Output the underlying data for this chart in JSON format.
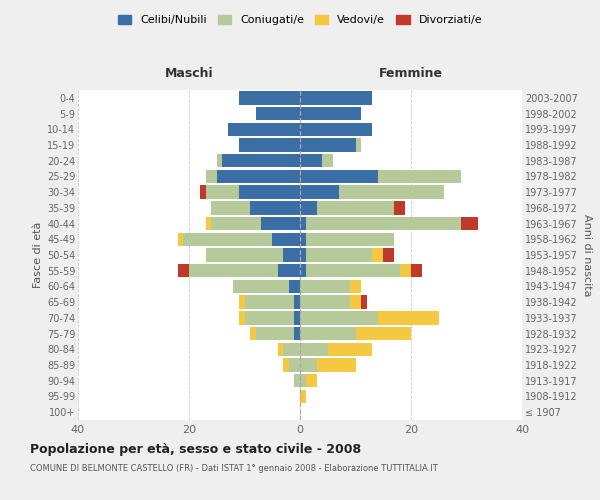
{
  "age_groups": [
    "100+",
    "95-99",
    "90-94",
    "85-89",
    "80-84",
    "75-79",
    "70-74",
    "65-69",
    "60-64",
    "55-59",
    "50-54",
    "45-49",
    "40-44",
    "35-39",
    "30-34",
    "25-29",
    "20-24",
    "15-19",
    "10-14",
    "5-9",
    "0-4"
  ],
  "birth_years": [
    "≤ 1907",
    "1908-1912",
    "1913-1917",
    "1918-1922",
    "1923-1927",
    "1928-1932",
    "1933-1937",
    "1938-1942",
    "1943-1947",
    "1948-1952",
    "1953-1957",
    "1958-1962",
    "1963-1967",
    "1968-1972",
    "1973-1977",
    "1978-1982",
    "1983-1987",
    "1988-1992",
    "1993-1997",
    "1998-2002",
    "2003-2007"
  ],
  "colors": {
    "celibe": "#3a6ea5",
    "coniugato": "#b5c99a",
    "vedovo": "#f5c842",
    "divorziato": "#c0392b"
  },
  "males": {
    "celibe": [
      0,
      0,
      0,
      0,
      0,
      1,
      1,
      1,
      2,
      4,
      3,
      5,
      7,
      9,
      11,
      15,
      14,
      11,
      13,
      8,
      11
    ],
    "coniugato": [
      0,
      0,
      1,
      2,
      3,
      7,
      9,
      9,
      10,
      16,
      14,
      16,
      9,
      7,
      6,
      2,
      1,
      0,
      0,
      0,
      0
    ],
    "vedovo": [
      0,
      0,
      0,
      1,
      1,
      1,
      1,
      1,
      0,
      0,
      0,
      1,
      1,
      0,
      0,
      0,
      0,
      0,
      0,
      0,
      0
    ],
    "divorziato": [
      0,
      0,
      0,
      0,
      0,
      0,
      0,
      0,
      0,
      2,
      0,
      0,
      0,
      0,
      1,
      0,
      0,
      0,
      0,
      0,
      0
    ]
  },
  "females": {
    "celibe": [
      0,
      0,
      0,
      0,
      0,
      0,
      0,
      0,
      0,
      1,
      1,
      1,
      1,
      3,
      7,
      14,
      4,
      10,
      13,
      11,
      13
    ],
    "coniugato": [
      0,
      0,
      1,
      3,
      5,
      10,
      14,
      9,
      9,
      17,
      12,
      16,
      28,
      14,
      19,
      15,
      2,
      1,
      0,
      0,
      0
    ],
    "vedovo": [
      0,
      1,
      2,
      7,
      8,
      10,
      11,
      2,
      2,
      2,
      2,
      0,
      0,
      0,
      0,
      0,
      0,
      0,
      0,
      0,
      0
    ],
    "divorziato": [
      0,
      0,
      0,
      0,
      0,
      0,
      0,
      1,
      0,
      2,
      2,
      0,
      3,
      2,
      0,
      0,
      0,
      0,
      0,
      0,
      0
    ]
  },
  "xlim": 40,
  "title_main": "Popolazione per età, sesso e stato civile - 2008",
  "title_sub": "COMUNE DI BELMONTE CASTELLO (FR) - Dati ISTAT 1° gennaio 2008 - Elaborazione TUTTITALIA.IT",
  "xlabel_left": "Maschi",
  "xlabel_right": "Femmine",
  "ylabel_left": "Fasce di età",
  "ylabel_right": "Anni di nascita",
  "legend_labels": [
    "Celibi/Nubili",
    "Coniugati/e",
    "Vedovi/e",
    "Divorziati/e"
  ],
  "bg_color": "#efefef",
  "plot_bg": "#ffffff"
}
